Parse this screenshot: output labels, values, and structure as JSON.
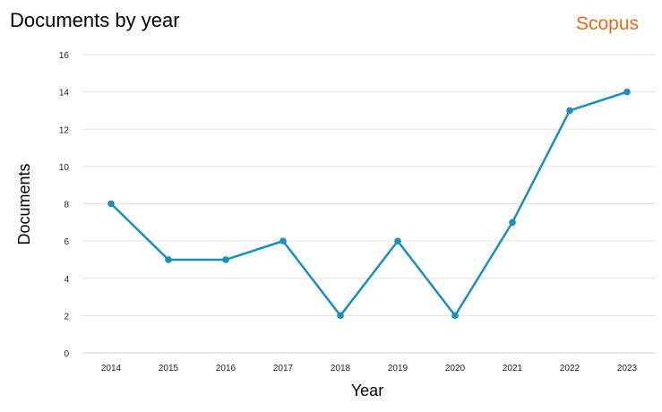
{
  "header": {
    "title": "Documents by year",
    "brand": "Scopus"
  },
  "colors": {
    "brand": "#e8691b",
    "series": "#1a8fc1",
    "grid": "#e2e2e2"
  },
  "chart_data": {
    "type": "line",
    "title": "Documents by year",
    "xlabel": "Year",
    "ylabel": "Documents",
    "categories": [
      "2014",
      "2015",
      "2016",
      "2017",
      "2018",
      "2019",
      "2020",
      "2021",
      "2022",
      "2023"
    ],
    "series": [
      {
        "values": [
          8,
          5,
          5,
          6,
          2,
          6,
          2,
          7,
          13,
          14
        ]
      }
    ],
    "ylim": [
      0,
      16
    ],
    "yticks": [
      0,
      2,
      4,
      6,
      8,
      10,
      12,
      14,
      16
    ],
    "grid": true,
    "legend": "none"
  }
}
